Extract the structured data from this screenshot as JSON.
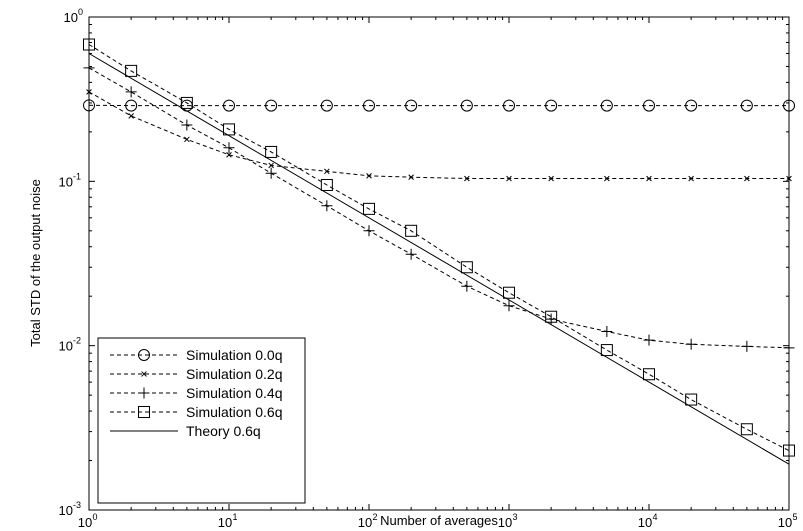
{
  "chart_data": {
    "type": "line",
    "xlabel": "Number of averages",
    "ylabel": "Total STD of the output noise",
    "xscale": "log",
    "yscale": "log",
    "xlim": [
      1,
      100000
    ],
    "ylim": [
      0.001,
      1
    ],
    "x_ticks": [
      {
        "base": "10",
        "exp": "0",
        "value": 1
      },
      {
        "base": "10",
        "exp": "1",
        "value": 10
      },
      {
        "base": "10",
        "exp": "2",
        "value": 100
      },
      {
        "base": "10",
        "exp": "3",
        "value": 1000
      },
      {
        "base": "10",
        "exp": "4",
        "value": 10000
      },
      {
        "base": "10",
        "exp": "5",
        "value": 100000
      }
    ],
    "y_ticks": [
      {
        "base": "10",
        "exp": "-3",
        "value": 0.001
      },
      {
        "base": "10",
        "exp": "-2",
        "value": 0.01
      },
      {
        "base": "10",
        "exp": "-1",
        "value": 0.1
      },
      {
        "base": "10",
        "exp": "0",
        "value": 1
      }
    ],
    "grid": false,
    "legend_position": "bottom-left",
    "series": [
      {
        "name": "Simulation 0.0q",
        "style": "dashed",
        "marker": "circle",
        "color": "#000000",
        "x": [
          1,
          2,
          5,
          10,
          20,
          50,
          100,
          200,
          500,
          1000,
          2000,
          5000,
          10000,
          20000,
          50000,
          100000
        ],
        "y": [
          0.29,
          0.289,
          0.289,
          0.289,
          0.289,
          0.289,
          0.289,
          0.289,
          0.289,
          0.289,
          0.289,
          0.289,
          0.289,
          0.289,
          0.289,
          0.289
        ]
      },
      {
        "name": "Simulation 0.2q",
        "style": "dashed",
        "marker": "x",
        "color": "#000000",
        "x": [
          1,
          2,
          5,
          10,
          20,
          50,
          100,
          200,
          500,
          1000,
          2000,
          5000,
          10000,
          20000,
          50000,
          100000
        ],
        "y": [
          0.35,
          0.25,
          0.18,
          0.145,
          0.125,
          0.115,
          0.108,
          0.106,
          0.104,
          0.104,
          0.104,
          0.104,
          0.104,
          0.104,
          0.104,
          0.104
        ]
      },
      {
        "name": "Simulation 0.4q",
        "style": "dashed",
        "marker": "plus",
        "color": "#000000",
        "x": [
          1,
          2,
          5,
          10,
          20,
          50,
          100,
          200,
          500,
          1000,
          2000,
          5000,
          10000,
          20000,
          50000,
          100000
        ],
        "y": [
          0.49,
          0.35,
          0.22,
          0.16,
          0.112,
          0.071,
          0.05,
          0.036,
          0.023,
          0.0175,
          0.0145,
          0.0122,
          0.0108,
          0.0102,
          0.0099,
          0.0097
        ]
      },
      {
        "name": "Simulation 0.6q",
        "style": "dashed",
        "marker": "square",
        "color": "#000000",
        "x": [
          1,
          2,
          5,
          10,
          20,
          50,
          100,
          200,
          500,
          1000,
          2000,
          5000,
          10000,
          20000,
          50000,
          100000
        ],
        "y": [
          0.68,
          0.47,
          0.3,
          0.207,
          0.151,
          0.095,
          0.068,
          0.05,
          0.03,
          0.021,
          0.015,
          0.0094,
          0.0067,
          0.0047,
          0.0031,
          0.0023
        ]
      },
      {
        "name": "Theory 0.6q",
        "style": "solid",
        "marker": "none",
        "color": "#000000",
        "x": [
          1,
          100000
        ],
        "y": [
          0.6,
          0.0019
        ]
      }
    ]
  }
}
